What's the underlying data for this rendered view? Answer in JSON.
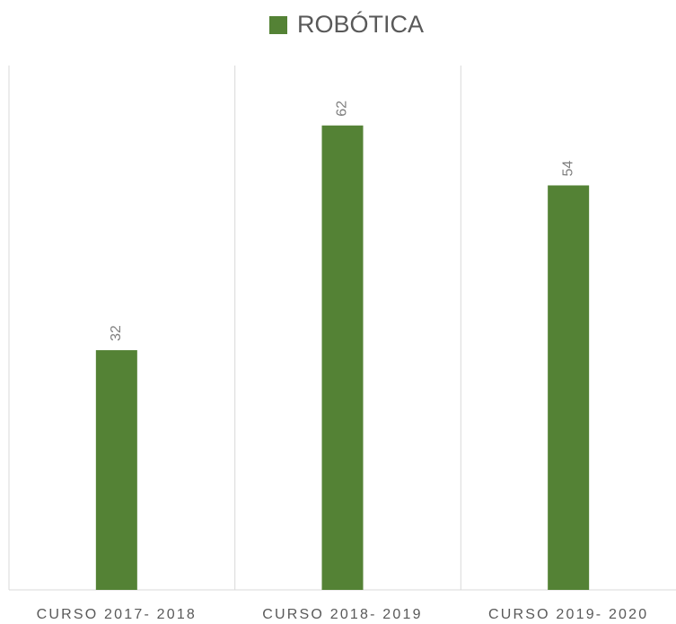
{
  "chart_data": {
    "type": "bar",
    "categories": [
      "CURSO 2017- 2018",
      "CURSO 2018- 2019",
      "CURSO 2019- 2020"
    ],
    "series": [
      {
        "name": "ROBÓTICA",
        "color": "#548235",
        "values": [
          32,
          62,
          54
        ]
      }
    ],
    "ylim": [
      0,
      70
    ],
    "legend": "top"
  }
}
